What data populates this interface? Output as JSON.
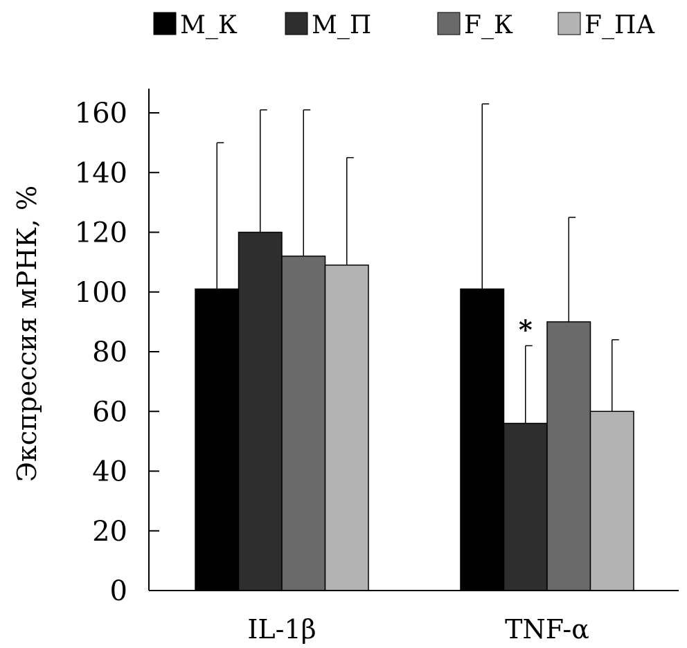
{
  "chart_data": {
    "type": "bar",
    "title": "",
    "xlabel": "",
    "ylabel": "Экспрессия мРНК, %",
    "ylim": [
      0,
      168
    ],
    "yticks": [
      0,
      20,
      40,
      60,
      80,
      100,
      120,
      140,
      160
    ],
    "categories": [
      "IL-1β",
      "TNF-α"
    ],
    "legend_position": "top",
    "series": [
      {
        "name": "M_К",
        "color": "#000000",
        "values": [
          101,
          101
        ],
        "errors": [
          49,
          62
        ]
      },
      {
        "name": "M_П",
        "color": "#2e2e2e",
        "values": [
          120,
          56
        ],
        "errors": [
          41,
          26
        ]
      },
      {
        "name": "F_К",
        "color": "#6a6a6a",
        "values": [
          112,
          90
        ],
        "errors": [
          49,
          35
        ]
      },
      {
        "name": "F_ПА",
        "color": "#b3b3b3",
        "values": [
          109,
          60
        ],
        "errors": [
          36,
          24
        ]
      }
    ],
    "annotations": [
      {
        "text": "*",
        "category_index": 1,
        "series_index": 1
      }
    ]
  }
}
